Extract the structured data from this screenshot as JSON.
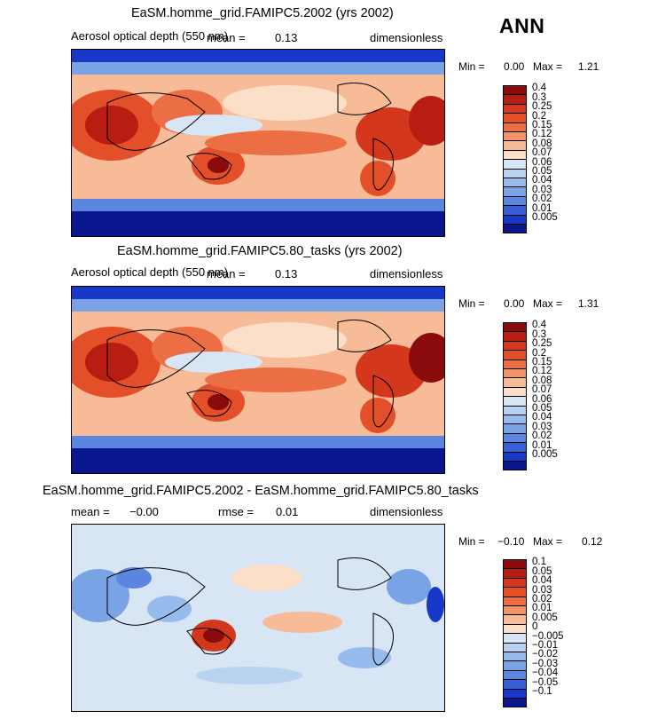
{
  "season": "ANN",
  "panels": [
    {
      "title": "EaSM.homme_grid.FAMIPC5.2002 (yrs 2002)",
      "variable": "Aerosol optical depth (550 nm)",
      "mean_label": "mean =",
      "mean_value": "0.13",
      "units": "dimensionless",
      "min_label": "Min =",
      "min_value": "0.00",
      "max_label": "Max =",
      "max_value": "1.21"
    },
    {
      "title": "EaSM.homme_grid.FAMIPC5.80_tasks (yrs 2002)",
      "variable": "Aerosol optical depth (550 nm)",
      "mean_label": "mean =",
      "mean_value": "0.13",
      "units": "dimensionless",
      "min_label": "Min =",
      "min_value": "0.00",
      "max_label": "Max =",
      "max_value": "1.31"
    },
    {
      "title": "EaSM.homme_grid.FAMIPC5.2002 - EaSM.homme_grid.FAMIPC5.80_tasks",
      "mean_label": "mean =",
      "mean_value": "−0.00",
      "rmse_label": "rmse =",
      "rmse_value": "0.01",
      "units": "dimensionless",
      "min_label": "Min =",
      "min_value": "−0.10",
      "max_label": "Max =",
      "max_value": "0.12"
    }
  ],
  "chart_data": [
    {
      "type": "heatmap",
      "title": "EaSM.homme_grid.FAMIPC5.2002 (yrs 2002)",
      "colorbar_levels": [
        "0.4",
        "0.3",
        "0.25",
        "0.2",
        "0.15",
        "0.12",
        "0.08",
        "0.07",
        "0.06",
        "0.05",
        "0.04",
        "0.03",
        "0.02",
        "0.01",
        "0.005"
      ],
      "colorbar_colors": [
        "#8a0b0b",
        "#b81d12",
        "#d4381c",
        "#e24f28",
        "#ec6e44",
        "#f29467",
        "#f7bb97",
        "#fcdfc9",
        "#d7e5f5",
        "#b9d2f0",
        "#97bbec",
        "#7aa3e6",
        "#5a86df",
        "#3860d6",
        "#1838c8",
        "#0a168e"
      ],
      "min": 0.0,
      "max": 1.21,
      "mean": 0.13
    },
    {
      "type": "heatmap",
      "title": "EaSM.homme_grid.FAMIPC5.80_tasks (yrs 2002)",
      "colorbar_levels": [
        "0.4",
        "0.3",
        "0.25",
        "0.2",
        "0.15",
        "0.12",
        "0.08",
        "0.07",
        "0.06",
        "0.05",
        "0.04",
        "0.03",
        "0.02",
        "0.01",
        "0.005"
      ],
      "colorbar_colors": [
        "#8a0b0b",
        "#b81d12",
        "#d4381c",
        "#e24f28",
        "#ec6e44",
        "#f29467",
        "#f7bb97",
        "#fcdfc9",
        "#d7e5f5",
        "#b9d2f0",
        "#97bbec",
        "#7aa3e6",
        "#5a86df",
        "#3860d6",
        "#1838c8",
        "#0a168e"
      ],
      "min": 0.0,
      "max": 1.31,
      "mean": 0.13
    },
    {
      "type": "heatmap",
      "title": "EaSM.homme_grid.FAMIPC5.2002 - EaSM.homme_grid.FAMIPC5.80_tasks",
      "colorbar_levels": [
        "0.1",
        "0.05",
        "0.04",
        "0.03",
        "0.02",
        "0.01",
        "0.005",
        "0",
        "−0.005",
        "−0.01",
        "−0.02",
        "−0.03",
        "−0.04",
        "−0.05",
        "−0.1"
      ],
      "colorbar_colors": [
        "#8a0b0b",
        "#b81d12",
        "#d4381c",
        "#e24f28",
        "#ec6e44",
        "#f29467",
        "#f7bb97",
        "#fcdfc9",
        "#d7e5f5",
        "#b9d2f0",
        "#97bbec",
        "#7aa3e6",
        "#5a86df",
        "#3860d6",
        "#1838c8",
        "#0a168e"
      ],
      "min": -0.1,
      "max": 0.12,
      "mean": -0.0,
      "rmse": 0.01
    }
  ]
}
